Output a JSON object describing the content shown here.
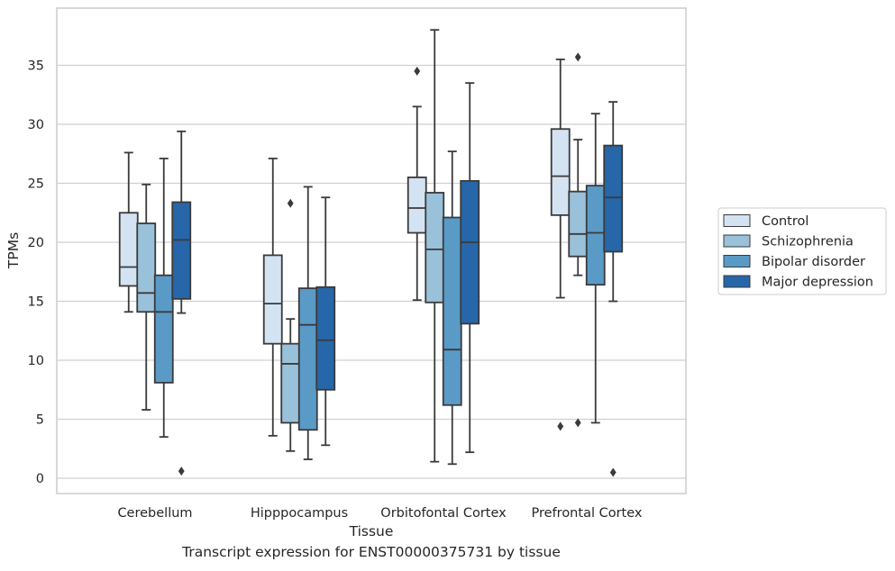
{
  "caption": "Transcript expression for ENST00000375731 by tissue",
  "chart_data": {
    "type": "box",
    "xlabel": "Tissue",
    "ylabel": "TPMs",
    "ylim": [
      -1.2,
      39.5
    ],
    "yticks": [
      0,
      5,
      10,
      15,
      20,
      25,
      30,
      35
    ],
    "grid": "horizontal",
    "legend_position": "right",
    "categories": [
      "Cerebellum",
      "Hipppocampus",
      "Orbitofontal Cortex",
      "Prefrontal Cortex"
    ],
    "series": [
      {
        "name": "Control",
        "color": "#d4e3f2",
        "boxes": [
          {
            "whisker_low": 14.1,
            "q1": 16.3,
            "median": 17.9,
            "q3": 22.5,
            "whisker_high": 27.6,
            "outliers": []
          },
          {
            "whisker_low": 3.6,
            "q1": 11.4,
            "median": 14.8,
            "q3": 18.9,
            "whisker_high": 27.1,
            "outliers": []
          },
          {
            "whisker_low": 15.1,
            "q1": 20.8,
            "median": 22.9,
            "q3": 25.5,
            "whisker_high": 31.5,
            "outliers": [
              34.5
            ]
          },
          {
            "whisker_low": 15.3,
            "q1": 22.3,
            "median": 25.6,
            "q3": 29.6,
            "whisker_high": 35.5,
            "outliers": [
              4.4
            ]
          }
        ]
      },
      {
        "name": "Schizophrenia",
        "color": "#9ac1da",
        "boxes": [
          {
            "whisker_low": 5.8,
            "q1": 14.1,
            "median": 15.7,
            "q3": 21.6,
            "whisker_high": 24.9,
            "outliers": []
          },
          {
            "whisker_low": 2.3,
            "q1": 4.7,
            "median": 9.7,
            "q3": 11.4,
            "whisker_high": 13.5,
            "outliers": [
              23.3
            ]
          },
          {
            "whisker_low": 1.4,
            "q1": 14.9,
            "median": 19.4,
            "q3": 24.2,
            "whisker_high": 38.0,
            "outliers": []
          },
          {
            "whisker_low": 17.2,
            "q1": 18.8,
            "median": 20.7,
            "q3": 24.3,
            "whisker_high": 28.7,
            "outliers": [
              35.7,
              4.7
            ]
          }
        ]
      },
      {
        "name": "Bipolar disorder",
        "color": "#5a9ac6",
        "boxes": [
          {
            "whisker_low": 3.5,
            "q1": 8.1,
            "median": 14.1,
            "q3": 17.2,
            "whisker_high": 27.1,
            "outliers": []
          },
          {
            "whisker_low": 1.6,
            "q1": 4.1,
            "median": 13.0,
            "q3": 16.1,
            "whisker_high": 24.7,
            "outliers": []
          },
          {
            "whisker_low": 1.2,
            "q1": 6.2,
            "median": 10.9,
            "q3": 22.1,
            "whisker_high": 27.7,
            "outliers": []
          },
          {
            "whisker_low": 4.7,
            "q1": 16.4,
            "median": 20.8,
            "q3": 24.8,
            "whisker_high": 30.9,
            "outliers": []
          }
        ]
      },
      {
        "name": "Major depression",
        "color": "#2766a8",
        "boxes": [
          {
            "whisker_low": 14.0,
            "q1": 15.2,
            "median": 20.2,
            "q3": 23.4,
            "whisker_high": 29.4,
            "outliers": [
              0.6
            ]
          },
          {
            "whisker_low": 2.8,
            "q1": 7.5,
            "median": 11.7,
            "q3": 16.2,
            "whisker_high": 23.8,
            "outliers": []
          },
          {
            "whisker_low": 2.2,
            "q1": 13.1,
            "median": 20.0,
            "q3": 25.2,
            "whisker_high": 33.5,
            "outliers": []
          },
          {
            "whisker_low": 15.0,
            "q1": 19.2,
            "median": 23.8,
            "q3": 28.2,
            "whisker_high": 31.9,
            "outliers": [
              0.5
            ]
          }
        ]
      }
    ]
  }
}
